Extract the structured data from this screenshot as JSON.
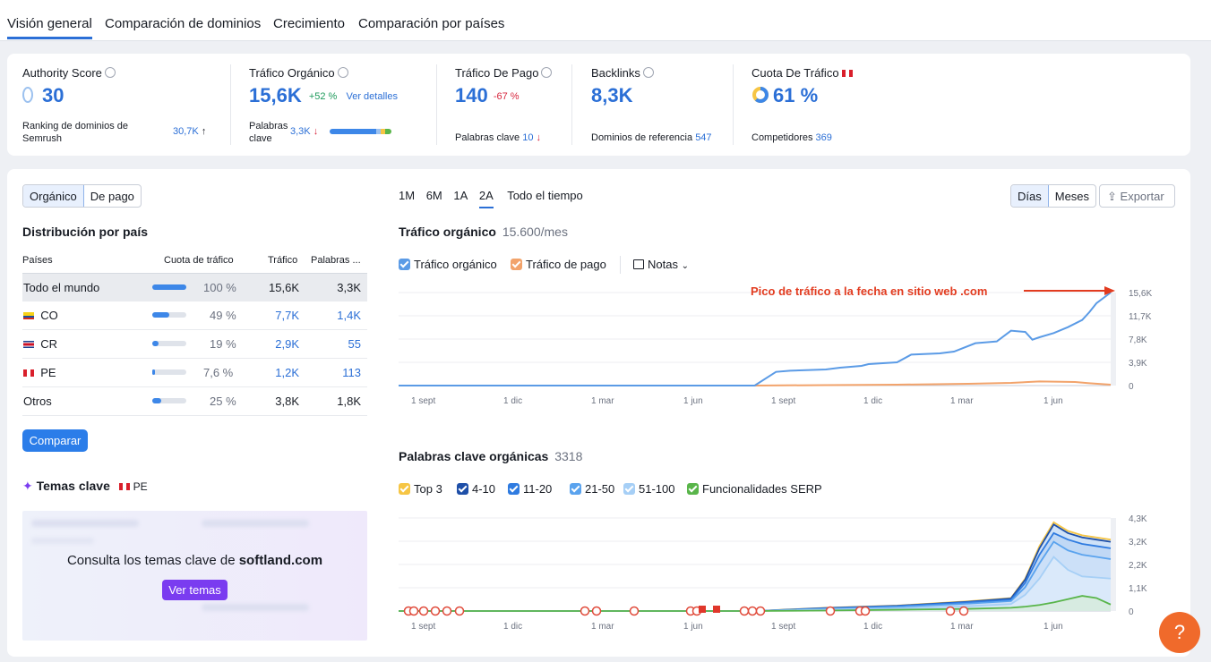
{
  "nav": {
    "tabs": [
      "Visión general",
      "Comparación de dominios",
      "Crecimiento",
      "Comparación por países"
    ]
  },
  "metrics": {
    "authority": {
      "label": "Authority Score",
      "value": "30",
      "sub_label": "Ranking de dominios de Semrush",
      "sub_value": "30,7K",
      "sub_arrow": "↑"
    },
    "organic": {
      "label": "Tráfico Orgánico",
      "value": "15,6K",
      "change": "+52 %",
      "link": "Ver detalles",
      "kw_label": "Palabras clave",
      "kw_value": "3,3K",
      "kw_arrow": "↓"
    },
    "paid": {
      "label": "Tráfico De Pago",
      "value": "140",
      "change": "-67 %",
      "kw_label": "Palabras clave",
      "kw_value": "10",
      "kw_arrow": "↓"
    },
    "backlinks": {
      "label": "Backlinks",
      "value": "8,3K",
      "sub_label": "Dominios de referencia",
      "sub_value": "547"
    },
    "share": {
      "label": "Cuota De Tráfico",
      "value": "61 %",
      "sub_label": "Competidores",
      "sub_value": "369"
    }
  },
  "left": {
    "toggle": [
      "Orgánico",
      "De pago"
    ],
    "dist_title": "Distribución por país",
    "columns": [
      "Países",
      "Cuota de tráfico",
      "Tráfico",
      "Palabras ..."
    ],
    "rows": [
      {
        "country": "Todo el mundo",
        "share": "100 %",
        "share_frac": 1.0,
        "traffic": "15,6K",
        "keywords": "3,3K"
      },
      {
        "country": "CO",
        "share": "49 %",
        "share_frac": 0.49,
        "traffic": "7,7K",
        "keywords": "1,4K"
      },
      {
        "country": "CR",
        "share": "19 %",
        "share_frac": 0.19,
        "traffic": "2,9K",
        "keywords": "55"
      },
      {
        "country": "PE",
        "share": "7,6 %",
        "share_frac": 0.076,
        "traffic": "1,2K",
        "keywords": "113"
      },
      {
        "country": "Otros",
        "share": "25 %",
        "share_frac": 0.25,
        "traffic": "3,8K",
        "keywords": "1,8K"
      }
    ],
    "compare_btn": "Comparar",
    "topics_title": "Temas clave",
    "topics_country": "PE",
    "topics_msg_prefix": "Consulta los temas clave de ",
    "topics_domain": "softland.com",
    "topics_btn": "Ver temas"
  },
  "chart_controls": {
    "ranges": [
      "1M",
      "6M",
      "1A",
      "2A",
      "Todo el tiempo"
    ],
    "active_range": "2A",
    "granularity": [
      "Días",
      "Meses"
    ],
    "export": "Exportar"
  },
  "chart_data": [
    {
      "type": "line",
      "title": "Tráfico orgánico",
      "subtitle": "15.600/mes",
      "annotation": "Pico de tráfico a la fecha en sitio web .com",
      "legend": [
        "Tráfico orgánico",
        "Tráfico de pago"
      ],
      "notes_label": "Notas",
      "x_ticks": [
        "1 sept",
        "1 dic",
        "1 mar",
        "1 jun",
        "1 sept",
        "1 dic",
        "1 mar",
        "1 jun"
      ],
      "y_ticks": [
        "15,6K",
        "11,7K",
        "7,8K",
        "3,9K",
        "0"
      ],
      "ylim": [
        0,
        15600
      ],
      "series": [
        {
          "name": "Tráfico orgánico",
          "color": "#5b9be6",
          "x": [
            0,
            0.5,
            0.53,
            0.55,
            0.6,
            0.62,
            0.65,
            0.66,
            0.7,
            0.72,
            0.76,
            0.78,
            0.81,
            0.84,
            0.86,
            0.88,
            0.89,
            0.9,
            0.92,
            0.94,
            0.96,
            0.97,
            0.98,
            1.0
          ],
          "values": [
            0,
            0,
            2300,
            2500,
            2700,
            3000,
            3300,
            3600,
            3900,
            5200,
            5400,
            5700,
            7100,
            7400,
            9200,
            9000,
            7700,
            8100,
            8800,
            9800,
            11000,
            12300,
            13800,
            15600
          ]
        },
        {
          "name": "Tráfico de pago",
          "color": "#f2a36b",
          "x": [
            0,
            0.5,
            0.6,
            0.7,
            0.8,
            0.86,
            0.9,
            0.95,
            0.97,
            1.0
          ],
          "values": [
            0,
            0,
            80,
            150,
            300,
            450,
            700,
            600,
            400,
            150
          ]
        }
      ]
    },
    {
      "type": "area",
      "title": "Palabras clave orgánicas",
      "subtitle": "3318",
      "legend": [
        "Top 3",
        "4-10",
        "11-20",
        "21-50",
        "51-100",
        "Funcionalidades SERP"
      ],
      "legend_colors": [
        "#f6c544",
        "#1e4fa8",
        "#2f7be0",
        "#5aa3ee",
        "#a6cff6",
        "#59b54a"
      ],
      "x_ticks": [
        "1 sept",
        "1 dic",
        "1 mar",
        "1 jun",
        "1 sept",
        "1 dic",
        "1 mar",
        "1 jun"
      ],
      "y_ticks": [
        "4,3K",
        "3,2K",
        "2,2K",
        "1,1K",
        "0"
      ],
      "ylim": [
        0,
        4300
      ],
      "x": [
        0,
        0.5,
        0.6,
        0.7,
        0.8,
        0.86,
        0.88,
        0.9,
        0.92,
        0.94,
        0.96,
        0.98,
        1.0
      ],
      "series": [
        {
          "name": "Total",
          "color": "#f6c544",
          "values": [
            0,
            0,
            150,
            250,
            450,
            600,
            1500,
            3000,
            4100,
            3700,
            3500,
            3400,
            3300
          ]
        },
        {
          "name": "4-10",
          "color": "#1e4fa8",
          "values": [
            0,
            0,
            140,
            240,
            430,
            580,
            1450,
            2900,
            4000,
            3600,
            3400,
            3300,
            3200
          ]
        },
        {
          "name": "11-20",
          "color": "#2f7be0",
          "values": [
            0,
            0,
            120,
            220,
            400,
            520,
            1300,
            2600,
            3600,
            3300,
            3100,
            3000,
            2900
          ]
        },
        {
          "name": "21-50",
          "color": "#5aa3ee",
          "values": [
            0,
            0,
            100,
            190,
            340,
            460,
            1100,
            2200,
            3200,
            2800,
            2600,
            2500,
            2400
          ]
        },
        {
          "name": "51-100",
          "color": "#a6cff6",
          "values": [
            0,
            0,
            60,
            120,
            220,
            320,
            750,
            1500,
            2500,
            1900,
            1600,
            1550,
            1500
          ]
        },
        {
          "name": "Funcionalidades SERP",
          "color": "#59b54a",
          "values": [
            0,
            0,
            20,
            60,
            100,
            150,
            200,
            280,
            400,
            550,
            700,
            600,
            300
          ]
        }
      ]
    }
  ]
}
